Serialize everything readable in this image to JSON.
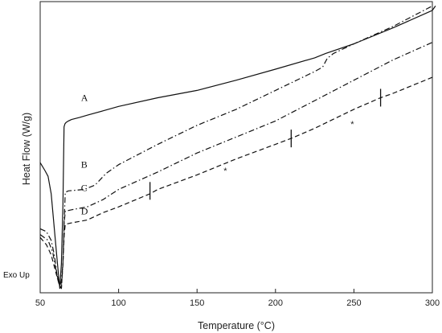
{
  "chart_data": {
    "type": "line",
    "title": "",
    "xlabel": "Temperature (°C)",
    "ylabel": "Heat Flow (W/g)",
    "xlim": [
      50,
      300
    ],
    "x_ticks": [
      50,
      100,
      150,
      200,
      250,
      300
    ],
    "y_tick_labels": false,
    "grid": false,
    "exo_label": "Exo Up",
    "series": [
      {
        "name": "A",
        "dash": "solid",
        "points": [
          [
            50,
            0.553
          ],
          [
            53,
            0.58
          ],
          [
            55,
            0.6
          ],
          [
            57,
            0.66
          ],
          [
            59,
            0.78
          ],
          [
            61,
            0.9
          ],
          [
            62.5,
            0.985
          ],
          [
            63.5,
            0.9
          ],
          [
            64.5,
            0.7
          ],
          [
            65.2,
            0.43
          ],
          [
            65.8,
            0.42
          ],
          [
            66.5,
            0.415
          ],
          [
            68,
            0.41
          ],
          [
            70,
            0.405
          ],
          [
            75,
            0.398
          ],
          [
            80,
            0.39
          ],
          [
            90,
            0.375
          ],
          [
            100,
            0.36
          ],
          [
            125,
            0.33
          ],
          [
            150,
            0.305
          ],
          [
            175,
            0.27
          ],
          [
            200,
            0.232
          ],
          [
            225,
            0.193
          ],
          [
            232,
            0.178
          ],
          [
            250,
            0.145
          ],
          [
            275,
            0.09
          ],
          [
            300,
            0.03
          ],
          [
            302,
            0.015
          ]
        ]
      },
      {
        "name": "B",
        "dash": "dashdot",
        "points": [
          [
            50,
            0.78
          ],
          [
            54,
            0.79
          ],
          [
            57,
            0.82
          ],
          [
            59,
            0.87
          ],
          [
            61,
            0.95
          ],
          [
            63,
            0.985
          ],
          [
            64.5,
            0.9
          ],
          [
            65.3,
            0.75
          ],
          [
            66,
            0.655
          ],
          [
            68,
            0.65
          ],
          [
            72,
            0.648
          ],
          [
            78,
            0.645
          ],
          [
            85,
            0.63
          ],
          [
            92,
            0.59
          ],
          [
            100,
            0.56
          ],
          [
            125,
            0.49
          ],
          [
            150,
            0.425
          ],
          [
            175,
            0.37
          ],
          [
            200,
            0.305
          ],
          [
            225,
            0.24
          ],
          [
            230,
            0.225
          ],
          [
            233,
            0.195
          ],
          [
            237,
            0.178
          ],
          [
            250,
            0.145
          ],
          [
            275,
            0.085
          ],
          [
            300,
            0.015
          ]
        ]
      },
      {
        "name": "C",
        "dash": "dashdot",
        "points": [
          [
            50,
            0.8
          ],
          [
            55,
            0.82
          ],
          [
            58,
            0.86
          ],
          [
            60,
            0.92
          ],
          [
            62,
            0.965
          ],
          [
            63.5,
            0.985
          ],
          [
            64.5,
            0.9
          ],
          [
            65.3,
            0.76
          ],
          [
            66,
            0.72
          ],
          [
            70,
            0.715
          ],
          [
            75,
            0.71
          ],
          [
            80,
            0.705
          ],
          [
            90,
            0.68
          ],
          [
            100,
            0.645
          ],
          [
            125,
            0.585
          ],
          [
            150,
            0.52
          ],
          [
            175,
            0.465
          ],
          [
            200,
            0.41
          ],
          [
            225,
            0.34
          ],
          [
            250,
            0.27
          ],
          [
            275,
            0.2
          ],
          [
            300,
            0.14
          ]
        ]
      },
      {
        "name": "D",
        "dash": "dashed",
        "points": [
          [
            50,
            0.81
          ],
          [
            54,
            0.835
          ],
          [
            57,
            0.87
          ],
          [
            60,
            0.93
          ],
          [
            62,
            0.97
          ],
          [
            63.5,
            0.985
          ],
          [
            64.5,
            0.9
          ],
          [
            65.3,
            0.8
          ],
          [
            66,
            0.765
          ],
          [
            70,
            0.76
          ],
          [
            80,
            0.75
          ],
          [
            90,
            0.725
          ],
          [
            100,
            0.705
          ],
          [
            120,
            0.66
          ],
          [
            125,
            0.645
          ],
          [
            150,
            0.595
          ],
          [
            175,
            0.54
          ],
          [
            200,
            0.49
          ],
          [
            210,
            0.47
          ],
          [
            225,
            0.435
          ],
          [
            250,
            0.37
          ],
          [
            267,
            0.33
          ],
          [
            275,
            0.315
          ],
          [
            300,
            0.26
          ]
        ]
      }
    ],
    "tick_marks": [
      [
        120,
        0.65
      ],
      [
        210,
        0.47
      ],
      [
        267,
        0.33
      ]
    ],
    "star_markers": [
      [
        168,
        0.58
      ],
      [
        249,
        0.42
      ]
    ],
    "curve_label_positions": [
      [
        76,
        0.33
      ],
      [
        76,
        0.56
      ],
      [
        76,
        0.64
      ],
      [
        76,
        0.72
      ]
    ]
  }
}
